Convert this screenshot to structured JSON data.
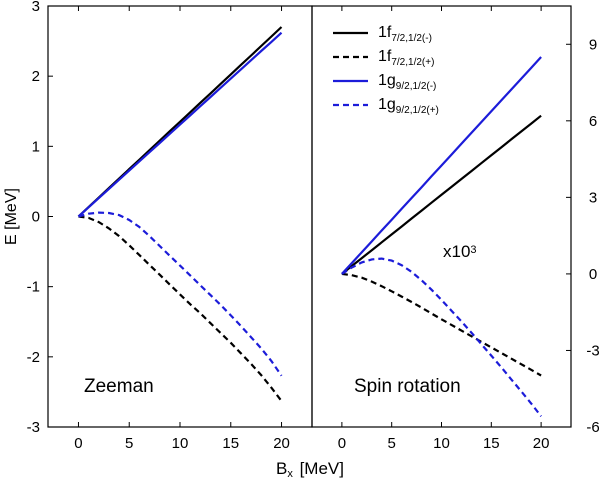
{
  "chart_data": [
    {
      "type": "line",
      "panel": "left",
      "annotation": "Zeeman",
      "xlabel": "B",
      "xlabel_sub": "x",
      "xlabel_unit": " [MeV]",
      "ylabel": "E [MeV]",
      "xlim": [
        -3,
        23
      ],
      "ylim": [
        -3,
        3
      ],
      "xticks": [
        0,
        5,
        10,
        15,
        20
      ],
      "yticks": [
        -3,
        -2,
        -1,
        0,
        1,
        2,
        3
      ],
      "x": [
        0,
        1,
        2,
        3,
        4,
        5,
        6,
        7,
        8,
        9,
        10,
        11,
        12,
        13,
        14,
        15,
        16,
        17,
        18,
        19,
        20
      ],
      "series": [
        {
          "name": "1f",
          "sub": "7/2,1/2(-)",
          "color": "#000000",
          "dash": "solid",
          "values": [
            0,
            0.135,
            0.27,
            0.405,
            0.54,
            0.675,
            0.81,
            0.945,
            1.08,
            1.215,
            1.35,
            1.485,
            1.62,
            1.755,
            1.89,
            2.025,
            2.16,
            2.295,
            2.43,
            2.565,
            2.7
          ]
        },
        {
          "name": "1f",
          "sub": "7/2,1/2(+)",
          "color": "#000000",
          "dash": "dashed",
          "values": [
            0,
            -0.02,
            -0.08,
            -0.17,
            -0.28,
            -0.41,
            -0.55,
            -0.69,
            -0.83,
            -0.97,
            -1.11,
            -1.25,
            -1.38,
            -1.52,
            -1.66,
            -1.8,
            -1.95,
            -2.1,
            -2.26,
            -2.44,
            -2.63
          ]
        },
        {
          "name": "1g",
          "sub": "9/2,1/2(-)",
          "color": "#1c1cd9",
          "dash": "solid",
          "values": [
            0,
            0.131,
            0.262,
            0.393,
            0.524,
            0.655,
            0.786,
            0.917,
            1.048,
            1.179,
            1.31,
            1.441,
            1.572,
            1.703,
            1.834,
            1.965,
            2.096,
            2.227,
            2.358,
            2.489,
            2.62
          ]
        },
        {
          "name": "1g",
          "sub": "9/2,1/2(+)",
          "color": "#1c1cd9",
          "dash": "dashed",
          "values": [
            0,
            0.04,
            0.055,
            0.05,
            0.02,
            -0.05,
            -0.15,
            -0.28,
            -0.42,
            -0.56,
            -0.7,
            -0.84,
            -0.98,
            -1.12,
            -1.26,
            -1.41,
            -1.56,
            -1.72,
            -1.88,
            -2.06,
            -2.27
          ]
        }
      ]
    },
    {
      "type": "line",
      "panel": "right",
      "annotation": "Spin rotation",
      "scale_label_base": "x10",
      "scale_label_exp": "3",
      "xlim": [
        -3,
        23
      ],
      "ylim": [
        -6,
        10.5
      ],
      "xticks": [
        0,
        5,
        10,
        15,
        20
      ],
      "yticks": [
        -6,
        -3,
        0,
        3,
        6,
        9
      ],
      "ytick_side": "right",
      "x": [
        0,
        1,
        2,
        3,
        4,
        5,
        6,
        7,
        8,
        9,
        10,
        11,
        12,
        13,
        14,
        15,
        16,
        17,
        18,
        19,
        20
      ],
      "series": [
        {
          "name": "1f",
          "sub": "7/2,1/2(-)",
          "color": "#000000",
          "dash": "solid",
          "values": [
            0,
            0.31,
            0.62,
            0.93,
            1.24,
            1.55,
            1.86,
            2.17,
            2.48,
            2.79,
            3.1,
            3.41,
            3.72,
            4.03,
            4.34,
            4.65,
            4.96,
            5.27,
            5.58,
            5.89,
            6.2
          ]
        },
        {
          "name": "1f",
          "sub": "7/2,1/2(+)",
          "color": "#000000",
          "dash": "dashed",
          "values": [
            0,
            -0.05,
            -0.15,
            -0.3,
            -0.48,
            -0.68,
            -0.89,
            -1.1,
            -1.32,
            -1.55,
            -1.78,
            -2.0,
            -2.22,
            -2.44,
            -2.66,
            -2.88,
            -3.1,
            -3.32,
            -3.54,
            -3.76,
            -3.98
          ]
        },
        {
          "name": "1g",
          "sub": "9/2,1/2(-)",
          "color": "#1c1cd9",
          "dash": "solid",
          "values": [
            0,
            0.425,
            0.85,
            1.275,
            1.7,
            2.125,
            2.55,
            2.975,
            3.4,
            3.825,
            4.25,
            4.675,
            5.1,
            5.525,
            5.95,
            6.375,
            6.8,
            7.225,
            7.65,
            8.075,
            8.5
          ]
        },
        {
          "name": "1g",
          "sub": "9/2,1/2(+)",
          "color": "#1c1cd9",
          "dash": "dashed",
          "values": [
            0,
            0.25,
            0.45,
            0.57,
            0.6,
            0.52,
            0.34,
            0.08,
            -0.25,
            -0.62,
            -1.02,
            -1.44,
            -1.86,
            -2.3,
            -2.75,
            -3.2,
            -3.66,
            -4.13,
            -4.6,
            -5.08,
            -5.58
          ]
        }
      ]
    }
  ],
  "legend": {
    "placement": "top-right panel, top-left corner",
    "entries": [
      {
        "name": "1f",
        "sub": "7/2,1/2(-)",
        "color": "#000000",
        "dash": "solid"
      },
      {
        "name": "1f",
        "sub": "7/2,1/2(+)",
        "color": "#000000",
        "dash": "dashed"
      },
      {
        "name": "1g",
        "sub": "9/2,1/2(-)",
        "color": "#1c1cd9",
        "dash": "solid"
      },
      {
        "name": "1g",
        "sub": "9/2,1/2(+)",
        "color": "#1c1cd9",
        "dash": "dashed"
      }
    ]
  }
}
